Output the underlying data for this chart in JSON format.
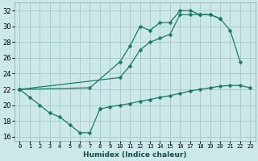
{
  "xlabel": "Humidex (Indice chaleur)",
  "bg_color": "#cce8e8",
  "grid_color": "#aacccc",
  "line_color": "#1a7a6a",
  "xlim": [
    -0.5,
    23.5
  ],
  "ylim": [
    15.5,
    33.0
  ],
  "xticks": [
    0,
    1,
    2,
    3,
    4,
    5,
    6,
    7,
    8,
    9,
    10,
    11,
    12,
    13,
    14,
    15,
    16,
    17,
    18,
    19,
    20,
    21,
    22,
    23
  ],
  "yticks": [
    16,
    18,
    20,
    22,
    24,
    26,
    28,
    30,
    32
  ],
  "series1_x": [
    0,
    1,
    2,
    3,
    4,
    5,
    6,
    7,
    8
  ],
  "series1_y": [
    22,
    21,
    20,
    19.0,
    18.5,
    17.5,
    16.5,
    16.5,
    19.5
  ],
  "series2_x": [
    0,
    7,
    10,
    11,
    12,
    13,
    14,
    15,
    16,
    17,
    18,
    19,
    20,
    21,
    22
  ],
  "series2_y": [
    22,
    22.2,
    25.5,
    27.5,
    30.0,
    29.5,
    30.5,
    30.5,
    32,
    32,
    31.5,
    31.5,
    31.0,
    29.5,
    25.5
  ],
  "series3_x": [
    0,
    10,
    11,
    12,
    13,
    14,
    15,
    16,
    17,
    18,
    19,
    20
  ],
  "series3_y": [
    22,
    23.5,
    25,
    27,
    28,
    28.5,
    29,
    31.5,
    31.5,
    31.5,
    31.5,
    31.0
  ],
  "series4_x": [
    8,
    9,
    10,
    11,
    12,
    13,
    14,
    15,
    16,
    17,
    18,
    19,
    20,
    21,
    22,
    23
  ],
  "series4_y": [
    19.5,
    19.8,
    20.0,
    20.2,
    20.5,
    20.7,
    21.0,
    21.2,
    21.5,
    21.8,
    22.0,
    22.2,
    22.4,
    22.5,
    22.5,
    22.2
  ]
}
